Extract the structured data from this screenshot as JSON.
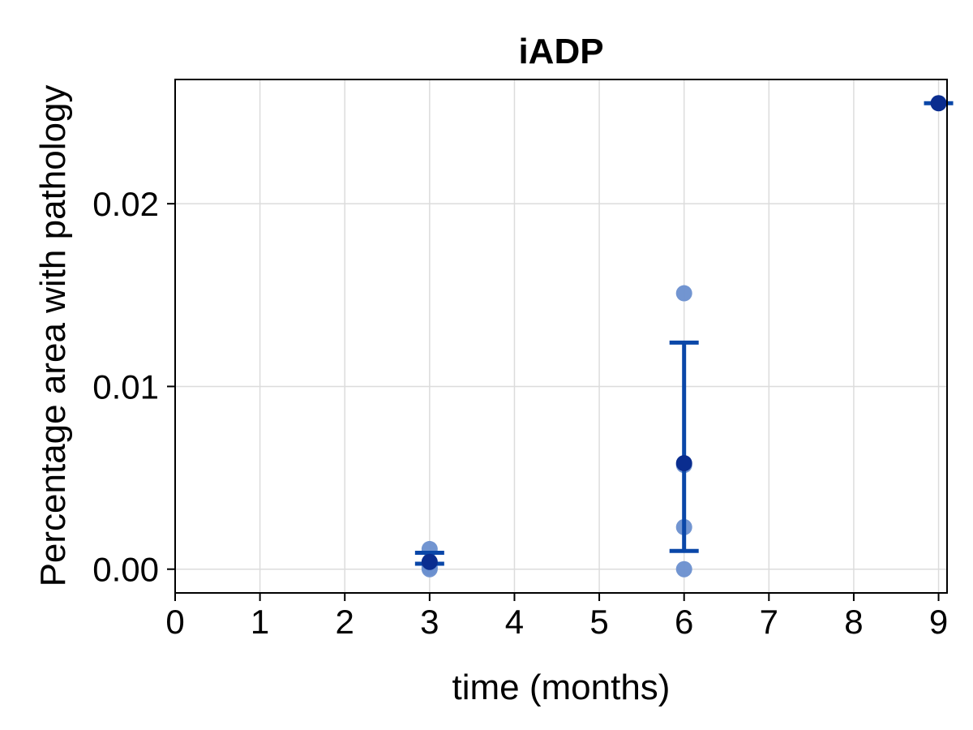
{
  "chart_data": {
    "type": "scatter",
    "title": "iADP",
    "xlabel": "time (months)",
    "ylabel": "Percentage area with pathology",
    "xlim": [
      0,
      9.1
    ],
    "ylim": [
      -0.0013,
      0.0268
    ],
    "x_ticks": [
      0,
      1,
      2,
      3,
      4,
      5,
      6,
      7,
      8,
      9
    ],
    "x_tick_labels": [
      "0",
      "1",
      "2",
      "3",
      "4",
      "5",
      "6",
      "7",
      "8",
      "9"
    ],
    "y_ticks": [
      0.0,
      0.01,
      0.02
    ],
    "y_tick_labels": [
      "0.00",
      "0.01",
      "0.02"
    ],
    "grid": true,
    "legend": false,
    "colors": {
      "points": "#6a8fcf",
      "mean": "#0a2d8f",
      "errorbar": "#0a47a8",
      "grid": "#dcdcdc",
      "frame": "#000000"
    },
    "points": [
      {
        "x": 3,
        "y": 0.0011
      },
      {
        "x": 3,
        "y": 0.0003
      },
      {
        "x": 3,
        "y": 0.0001
      },
      {
        "x": 3,
        "y": 0.0
      },
      {
        "x": 6,
        "y": 0.0151
      },
      {
        "x": 6,
        "y": 0.0057
      },
      {
        "x": 6,
        "y": 0.0023
      },
      {
        "x": 6,
        "y": 0.0
      }
    ],
    "means": [
      {
        "x": 3,
        "y": 0.0004,
        "err_low": 0.0003,
        "err_high": 0.0009
      },
      {
        "x": 6,
        "y": 0.0058,
        "err_low": 0.001,
        "err_high": 0.0124
      },
      {
        "x": 9,
        "y": 0.0255,
        "err_low": 0.0255,
        "err_high": 0.0255
      }
    ]
  }
}
